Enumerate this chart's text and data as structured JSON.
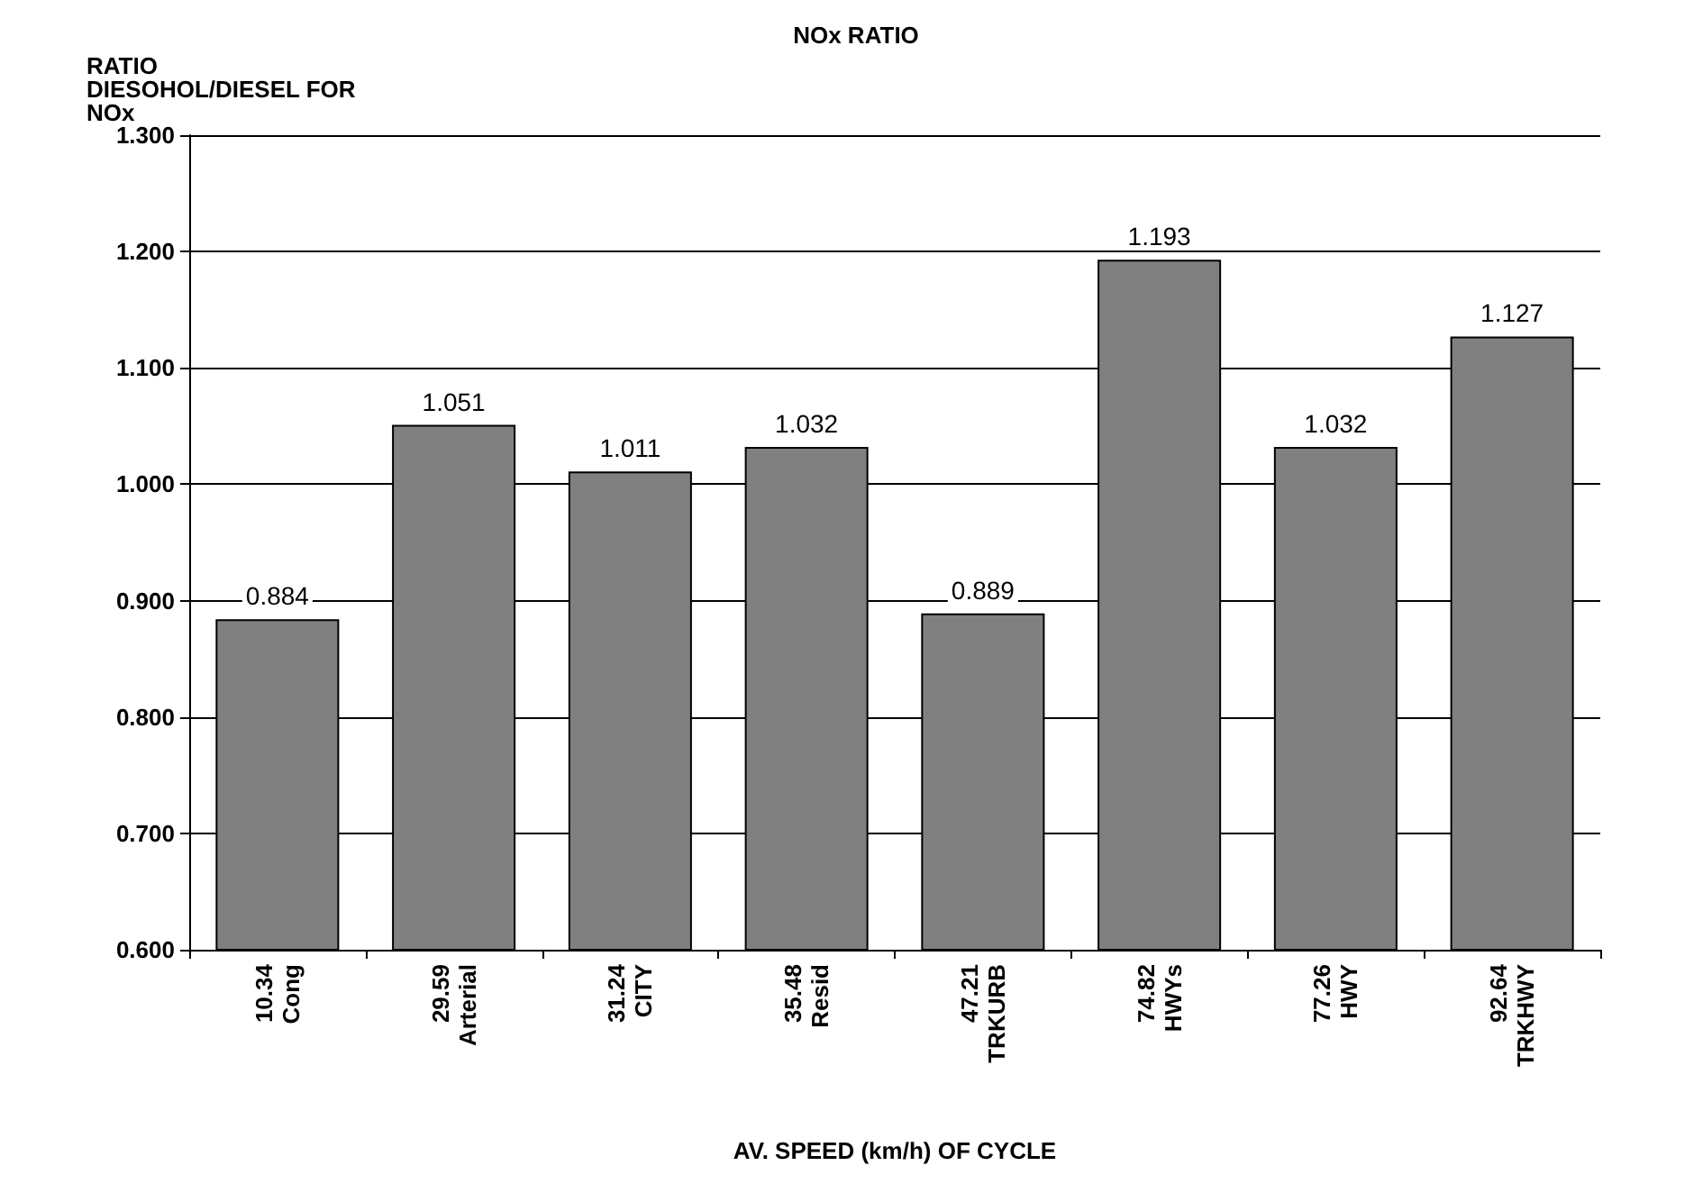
{
  "chart_data": {
    "type": "bar",
    "title": "NOx RATIO",
    "ylabel": "RATIO\nDIESOHOL/DIESEL FOR\nNOx",
    "xlabel": "AV. SPEED (km/h) OF CYCLE",
    "categories": [
      "10.34\nCong",
      "29.59\nArterial",
      "31.24\nCITY",
      "35.48\nResid",
      "47.21\nTRKURB",
      "74.82\nHWYs",
      "77.26\nHWY",
      "92.64\nTRKHWY"
    ],
    "values": [
      0.884,
      1.051,
      1.011,
      1.032,
      0.889,
      1.193,
      1.032,
      1.127
    ],
    "color": "#808080",
    "ylim": [
      0.6,
      1.3
    ],
    "yticks": [
      {
        "value": 0.6,
        "label": "0.600"
      },
      {
        "value": 0.7,
        "label": "0.700"
      },
      {
        "value": 0.8,
        "label": "0.800"
      },
      {
        "value": 0.9,
        "label": "0.900"
      },
      {
        "value": 1.0,
        "label": "1.000"
      },
      {
        "value": 1.1,
        "label": "1.100"
      },
      {
        "value": 1.2,
        "label": "1.200"
      },
      {
        "value": 1.3,
        "label": "1.300"
      }
    ],
    "grid": "y",
    "data_labels": true
  }
}
